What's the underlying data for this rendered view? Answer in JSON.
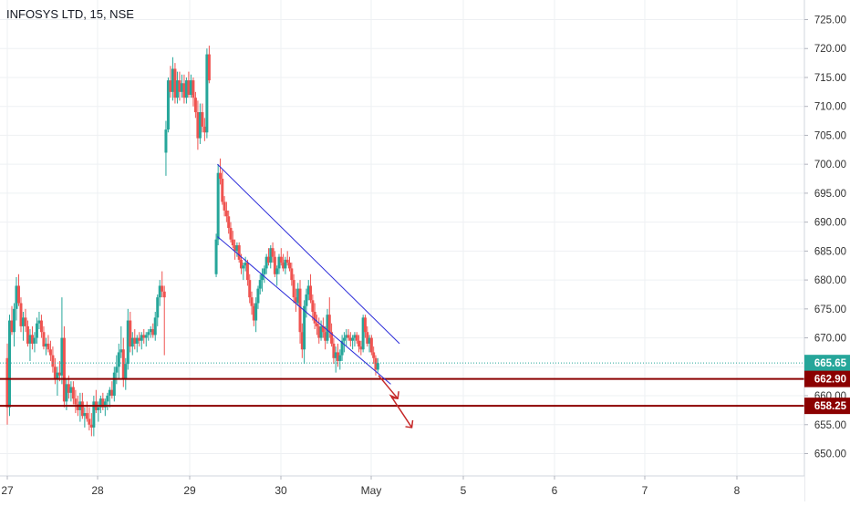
{
  "chart_data": {
    "type": "candlestick",
    "title": "INFOSYS LTD, 15, NSE",
    "ylim": [
      646,
      727
    ],
    "y_ticks": [
      "650.00",
      "655.00",
      "660.00",
      "665.00",
      "670.00",
      "675.00",
      "680.00",
      "685.00",
      "690.00",
      "695.00",
      "700.00",
      "705.00",
      "710.00",
      "715.00",
      "720.00",
      "725.00"
    ],
    "x_ticks": [
      "27",
      "28",
      "29",
      "30",
      "May",
      "5",
      "6",
      "7",
      "8"
    ],
    "grid": true,
    "colors": {
      "up": "#26a69a",
      "down": "#ef5350",
      "channel": "#2b2bd9",
      "support": "#8b0000",
      "last_price": "#26a69a",
      "arrow": "#c62828"
    },
    "candles": [
      [
        0,
        666.5,
        669.0,
        655.0,
        658.0
      ],
      [
        0.13,
        658.0,
        674.0,
        656.5,
        673.0
      ],
      [
        0.26,
        673.0,
        675.5,
        670.5,
        671.0
      ],
      [
        0.39,
        671.0,
        676.0,
        668.5,
        675.0
      ],
      [
        0.52,
        675.0,
        680.5,
        673.0,
        679.0
      ],
      [
        0.65,
        679.0,
        681.0,
        675.5,
        676.0
      ],
      [
        0.78,
        676.0,
        677.0,
        671.0,
        672.0
      ],
      [
        0.91,
        672.0,
        674.5,
        669.5,
        673.5
      ],
      [
        1.04,
        673.5,
        675.0,
        671.0,
        672.0
      ],
      [
        1.17,
        672.0,
        673.0,
        668.5,
        669.0
      ],
      [
        1.3,
        669.0,
        671.5,
        666.0,
        670.5
      ],
      [
        1.43,
        670.5,
        672.0,
        668.0,
        669.0
      ],
      [
        1.56,
        669.0,
        671.0,
        667.5,
        670.0
      ],
      [
        1.69,
        670.0,
        673.5,
        669.0,
        672.5
      ],
      [
        1.82,
        672.5,
        674.5,
        671.5,
        673.0
      ],
      [
        1.95,
        673.0,
        674.0,
        670.0,
        671.0
      ],
      [
        2.08,
        671.0,
        672.0,
        668.0,
        668.5
      ],
      [
        2.21,
        668.5,
        670.0,
        667.0,
        669.0
      ],
      [
        2.34,
        669.0,
        670.5,
        667.5,
        668.0
      ],
      [
        2.47,
        668.0,
        669.5,
        666.0,
        667.0
      ],
      [
        2.6,
        667.0,
        668.5,
        664.0,
        665.0
      ],
      [
        2.73,
        665.0,
        666.5,
        662.0,
        663.0
      ],
      [
        2.86,
        663.0,
        665.0,
        660.0,
        664.0
      ],
      [
        2.99,
        664.0,
        666.0,
        662.5,
        663.5
      ],
      [
        3.12,
        663.5,
        677.0,
        662.0,
        670.0
      ],
      [
        3.25,
        670.0,
        672.0,
        658.0,
        659.0
      ],
      [
        3.38,
        659.0,
        663.0,
        657.5,
        662.0
      ],
      [
        3.51,
        662.0,
        663.5,
        659.5,
        660.5
      ],
      [
        3.64,
        660.5,
        662.5,
        659.0,
        661.5
      ],
      [
        3.77,
        661.5,
        662.5,
        658.5,
        659.5
      ],
      [
        3.9,
        659.5,
        661.0,
        657.0,
        658.5
      ],
      [
        4.03,
        658.5,
        660.0,
        656.5,
        657.5
      ],
      [
        4.16,
        657.5,
        660.5,
        655.5,
        659.0
      ],
      [
        4.29,
        659.0,
        660.5,
        656.0,
        656.5
      ],
      [
        4.42,
        656.5,
        658.0,
        654.5,
        657.0
      ],
      [
        4.55,
        657.0,
        659.0,
        655.5,
        656.0
      ],
      [
        4.68,
        656.0,
        658.0,
        654.0,
        655.0
      ],
      [
        4.81,
        655.0,
        657.0,
        653.0,
        654.5
      ],
      [
        4.94,
        654.5,
        660.0,
        653.0,
        659.0
      ],
      [
        5.07,
        659.0,
        661.0,
        657.0,
        657.5
      ],
      [
        5.2,
        657.5,
        659.0,
        655.5,
        658.0
      ],
      [
        5.33,
        658.0,
        660.0,
        657.0,
        659.5
      ],
      [
        5.46,
        659.5,
        660.5,
        657.5,
        658.0
      ],
      [
        5.59,
        658.0,
        659.5,
        656.5,
        659.0
      ],
      [
        5.72,
        659.0,
        660.5,
        657.5,
        660.0
      ],
      [
        5.85,
        660.0,
        661.5,
        658.0,
        661.0
      ],
      [
        5.98,
        661.0,
        662.5,
        659.5,
        660.0
      ],
      [
        6.11,
        660.0,
        665.0,
        659.0,
        664.0
      ],
      [
        6.24,
        664.0,
        667.0,
        662.0,
        665.0
      ],
      [
        6.37,
        665.0,
        669.0,
        663.0,
        667.5
      ],
      [
        6.5,
        667.5,
        672.0,
        666.5,
        668.0
      ],
      [
        6.63,
        668.0,
        670.0,
        661.5,
        663.0
      ],
      [
        6.76,
        663.0,
        666.5,
        661.0,
        665.5
      ],
      [
        6.89,
        665.5,
        675.0,
        664.5,
        673.0
      ],
      [
        7.02,
        673.0,
        674.5,
        667.5,
        668.5
      ],
      [
        7.15,
        668.5,
        671.0,
        667.0,
        670.0
      ],
      [
        7.28,
        670.0,
        671.5,
        668.0,
        669.0
      ],
      [
        7.41,
        669.0,
        670.5,
        667.5,
        670.0
      ],
      [
        7.54,
        670.0,
        671.0,
        668.5,
        669.5
      ],
      [
        7.67,
        669.5,
        671.0,
        668.0,
        670.5
      ],
      [
        7.8,
        670.5,
        671.5,
        669.0,
        670.0
      ],
      [
        7.93,
        670.0,
        671.0,
        668.5,
        670.5
      ],
      [
        8.06,
        670.5,
        671.5,
        669.5,
        671.0
      ],
      [
        8.19,
        671.0,
        672.0,
        670.0,
        671.5
      ],
      [
        8.32,
        671.5,
        672.5,
        670.0,
        670.5
      ],
      [
        8.45,
        670.5,
        674.5,
        669.5,
        673.5
      ],
      [
        8.58,
        673.5,
        677.5,
        672.0,
        677.0
      ],
      [
        8.71,
        677.0,
        680.0,
        675.5,
        679.0
      ],
      [
        8.84,
        679.0,
        681.5,
        677.0,
        678.0
      ],
      [
        8.97,
        678.0,
        679.0,
        667.0,
        677.0
      ],
      [
        9.06,
        702.0,
        707.5,
        698.0,
        706.0
      ],
      [
        9.19,
        706.0,
        715.0,
        705.5,
        714.5
      ],
      [
        9.32,
        714.5,
        717.0,
        711.5,
        712.5
      ],
      [
        9.45,
        712.5,
        718.5,
        711.0,
        716.5
      ],
      [
        9.58,
        716.5,
        717.5,
        710.5,
        711.5
      ],
      [
        9.71,
        711.5,
        716.0,
        710.5,
        714.5
      ],
      [
        9.84,
        714.5,
        716.0,
        711.0,
        712.5
      ],
      [
        9.97,
        712.5,
        715.5,
        711.5,
        714.0
      ],
      [
        10.1,
        714.0,
        715.5,
        710.5,
        711.5
      ],
      [
        10.23,
        711.5,
        715.0,
        710.5,
        714.5
      ],
      [
        10.36,
        714.5,
        716.0,
        711.5,
        712.0
      ],
      [
        10.49,
        712.0,
        715.5,
        711.5,
        714.5
      ],
      [
        10.62,
        714.5,
        715.0,
        710.0,
        711.5
      ],
      [
        10.75,
        711.5,
        712.5,
        708.0,
        709.0
      ],
      [
        10.88,
        709.0,
        711.0,
        702.5,
        704.5
      ],
      [
        11.01,
        704.5,
        710.5,
        703.5,
        709.0
      ],
      [
        11.14,
        709.0,
        710.5,
        705.5,
        706.5
      ],
      [
        11.27,
        706.5,
        708.0,
        704.0,
        705.5
      ],
      [
        11.4,
        705.5,
        720.0,
        704.5,
        719.0
      ],
      [
        11.53,
        719.0,
        720.5,
        714.0,
        714.5
      ],
      [
        11.93,
        681.0,
        688.0,
        680.5,
        687.0
      ],
      [
        12.04,
        687.0,
        700.0,
        686.0,
        698.5
      ],
      [
        12.16,
        698.5,
        701.0,
        696.5,
        697.5
      ],
      [
        12.28,
        697.5,
        699.0,
        693.0,
        693.5
      ],
      [
        12.4,
        693.5,
        694.5,
        691.0,
        692.0
      ],
      [
        12.52,
        692.0,
        693.5,
        690.0,
        691.0
      ],
      [
        12.64,
        691.0,
        692.0,
        688.0,
        689.0
      ],
      [
        12.76,
        689.0,
        690.0,
        686.5,
        687.0
      ],
      [
        12.88,
        687.0,
        688.5,
        685.5,
        686.0
      ],
      [
        13.0,
        686.0,
        687.0,
        683.5,
        685.0
      ],
      [
        13.12,
        685.0,
        686.5,
        684.0,
        686.0
      ],
      [
        13.24,
        686.0,
        686.5,
        683.0,
        683.5
      ],
      [
        13.36,
        683.5,
        684.5,
        681.0,
        682.0
      ],
      [
        13.48,
        682.0,
        683.0,
        680.0,
        682.5
      ],
      [
        13.6,
        682.5,
        684.0,
        681.5,
        683.0
      ],
      [
        13.72,
        683.0,
        683.5,
        679.0,
        680.0
      ],
      [
        13.84,
        680.0,
        681.0,
        676.0,
        677.0
      ],
      [
        13.96,
        677.0,
        678.0,
        674.0,
        675.5
      ],
      [
        14.08,
        675.5,
        676.0,
        672.0,
        673.0
      ],
      [
        14.2,
        673.0,
        677.0,
        671.0,
        676.0
      ],
      [
        14.32,
        676.0,
        679.0,
        675.0,
        678.5
      ],
      [
        14.44,
        678.5,
        681.0,
        677.5,
        680.0
      ],
      [
        14.56,
        680.0,
        682.0,
        678.0,
        681.0
      ],
      [
        14.68,
        681.0,
        682.5,
        679.5,
        682.0
      ],
      [
        14.8,
        682.0,
        684.5,
        681.0,
        684.0
      ],
      [
        14.92,
        684.0,
        685.5,
        682.5,
        683.0
      ],
      [
        15.04,
        683.0,
        686.0,
        682.0,
        685.5
      ],
      [
        15.16,
        685.5,
        686.5,
        683.0,
        684.0
      ],
      [
        15.28,
        684.0,
        685.0,
        680.5,
        681.0
      ],
      [
        15.4,
        681.0,
        682.5,
        679.0,
        682.0
      ],
      [
        15.52,
        682.0,
        684.5,
        681.0,
        684.0
      ],
      [
        15.64,
        684.0,
        685.5,
        682.5,
        683.0
      ],
      [
        15.76,
        683.0,
        684.5,
        681.5,
        682.0
      ],
      [
        15.88,
        682.0,
        684.0,
        681.0,
        683.5
      ],
      [
        16.0,
        683.5,
        685.0,
        682.5,
        683.0
      ],
      [
        16.12,
        683.0,
        684.0,
        681.5,
        682.0
      ],
      [
        16.24,
        682.0,
        683.0,
        679.0,
        680.0
      ],
      [
        16.36,
        680.0,
        681.0,
        676.0,
        677.0
      ],
      [
        16.48,
        677.0,
        678.5,
        674.5,
        676.0
      ],
      [
        16.6,
        676.0,
        679.5,
        675.5,
        678.5
      ],
      [
        16.72,
        678.5,
        680.0,
        669.0,
        671.0
      ],
      [
        16.84,
        671.0,
        672.5,
        666.5,
        668.0
      ],
      [
        16.96,
        668.0,
        676.5,
        665.5,
        675.5
      ],
      [
        17.08,
        675.5,
        678.5,
        673.5,
        677.5
      ],
      [
        17.2,
        677.5,
        680.0,
        676.5,
        679.0
      ],
      [
        17.32,
        679.0,
        681.0,
        676.0,
        676.5
      ],
      [
        17.44,
        676.5,
        677.5,
        673.0,
        674.5
      ],
      [
        17.56,
        674.5,
        676.0,
        671.5,
        672.5
      ],
      [
        17.68,
        672.5,
        674.0,
        670.5,
        672.0
      ],
      [
        17.8,
        672.0,
        673.5,
        669.0,
        670.0
      ],
      [
        17.92,
        670.0,
        673.0,
        669.5,
        672.0
      ],
      [
        18.04,
        672.0,
        673.5,
        670.0,
        671.0
      ],
      [
        18.16,
        671.0,
        672.0,
        668.0,
        669.5
      ],
      [
        18.28,
        669.5,
        675.0,
        669.0,
        674.0
      ],
      [
        18.4,
        674.0,
        677.0,
        670.0,
        671.0
      ],
      [
        18.52,
        671.0,
        672.5,
        668.5,
        669.0
      ],
      [
        18.64,
        669.0,
        670.0,
        665.5,
        666.5
      ],
      [
        18.76,
        666.5,
        668.5,
        664.0,
        667.5
      ],
      [
        18.88,
        667.5,
        669.0,
        665.0,
        666.0
      ],
      [
        19.0,
        666.0,
        668.0,
        664.5,
        667.0
      ],
      [
        19.12,
        667.0,
        670.5,
        666.0,
        669.5
      ],
      [
        19.24,
        669.5,
        671.0,
        667.5,
        670.0
      ],
      [
        19.36,
        670.0,
        671.5,
        668.5,
        670.5
      ],
      [
        19.48,
        670.5,
        671.5,
        669.5,
        670.0
      ],
      [
        19.6,
        670.0,
        671.0,
        668.5,
        669.5
      ],
      [
        19.72,
        669.5,
        670.5,
        668.0,
        670.0
      ],
      [
        19.84,
        670.0,
        671.0,
        668.5,
        670.5
      ],
      [
        19.96,
        670.5,
        671.0,
        669.0,
        669.5
      ],
      [
        20.08,
        669.5,
        670.5,
        667.5,
        668.5
      ],
      [
        20.2,
        668.5,
        669.5,
        667.0,
        668.0
      ],
      [
        20.32,
        668.0,
        674.0,
        667.5,
        673.5
      ],
      [
        20.44,
        673.5,
        674.0,
        670.0,
        671.0
      ],
      [
        20.56,
        671.0,
        672.0,
        668.5,
        669.0
      ],
      [
        20.68,
        669.0,
        670.5,
        667.5,
        670.0
      ],
      [
        20.8,
        670.0,
        670.5,
        667.0,
        667.5
      ],
      [
        20.92,
        667.5,
        668.5,
        665.5,
        666.5
      ],
      [
        21.04,
        666.5,
        667.0,
        663.5,
        664.5
      ],
      [
        21.16,
        664.5,
        666.5,
        664.0,
        665.65
      ]
    ],
    "channel_upper": [
      [
        12.0,
        700.0
      ],
      [
        22.4,
        669.0
      ]
    ],
    "channel_lower": [
      [
        12.0,
        687.5
      ],
      [
        21.9,
        662.0
      ]
    ],
    "support_levels": [
      662.9,
      658.25
    ],
    "last_price": 665.65,
    "price_tags": [
      {
        "value": "665.65",
        "color": "#26a69a"
      },
      {
        "value": "662.90",
        "color": "#8b0000"
      },
      {
        "value": "658.25",
        "color": "#8b0000"
      }
    ]
  }
}
